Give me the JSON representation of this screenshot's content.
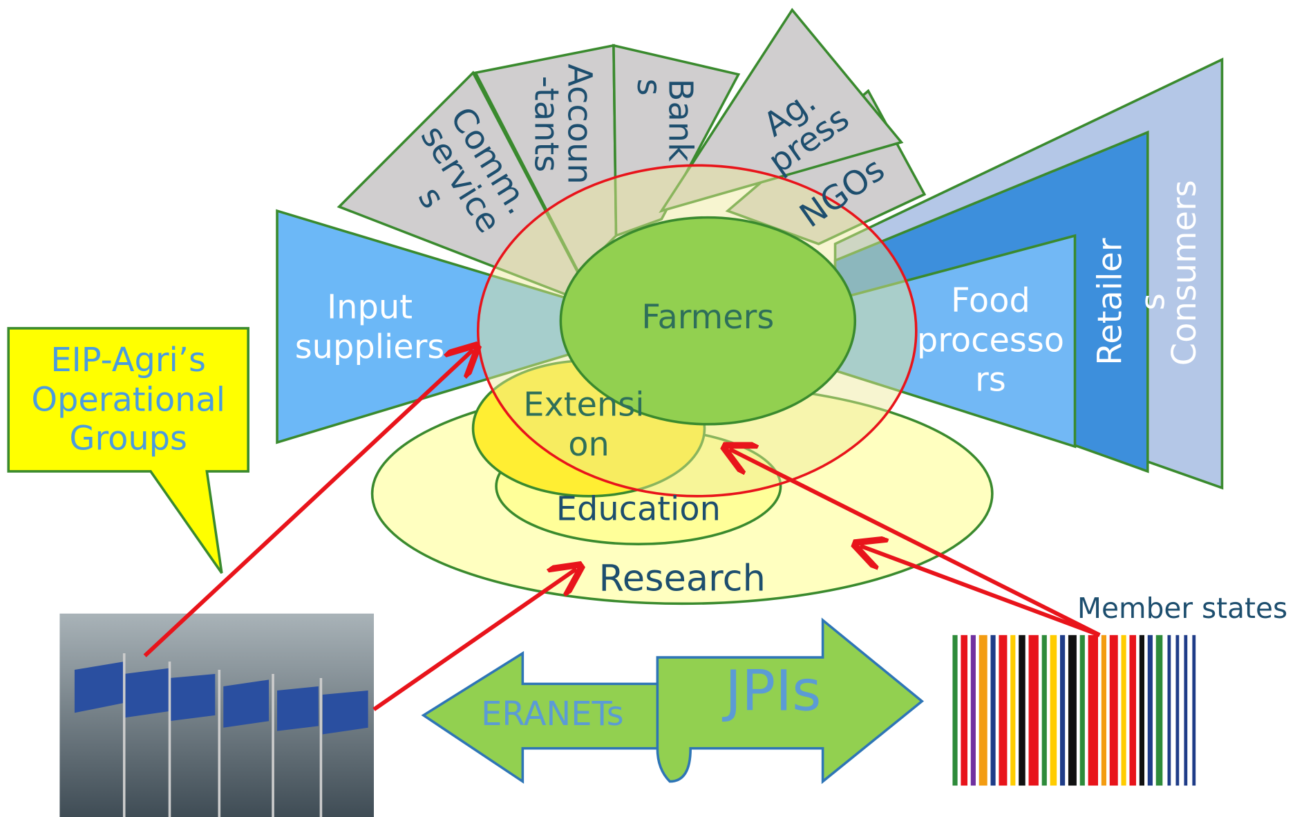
{
  "nodes": {
    "comm_services": {
      "lines": [
        "Comm.",
        "service",
        "s"
      ]
    },
    "accountants": {
      "lines": [
        "Accoun",
        "-tants"
      ]
    },
    "banks": {
      "lines": [
        "Bank",
        "s"
      ]
    },
    "ag_press": {
      "lines": [
        "Ag.",
        "press"
      ]
    },
    "ngos": {
      "lines": [
        "NGOs"
      ]
    },
    "input_suppliers": {
      "lines": [
        "Input",
        "suppliers"
      ]
    },
    "farmers": {
      "lines": [
        "Farmers"
      ]
    },
    "food_processors": {
      "lines": [
        "Food",
        "processo",
        "rs"
      ]
    },
    "retailers": {
      "lines": [
        "Retailer",
        "s"
      ]
    },
    "consumers": {
      "lines": [
        "Consumers"
      ]
    },
    "extension": {
      "lines": [
        "Extensi",
        "on"
      ]
    },
    "education": {
      "lines": [
        "Education"
      ]
    },
    "research": {
      "lines": [
        "Research"
      ]
    },
    "operational_groups": {
      "lines": [
        "EIP-Agri’s",
        "Operational",
        "Groups"
      ]
    },
    "member_states": {
      "lines": [
        "Member states"
      ]
    },
    "eranets": {
      "lines": [
        "ERANETs"
      ]
    },
    "jpis": {
      "lines": [
        "JPIs"
      ]
    }
  }
}
